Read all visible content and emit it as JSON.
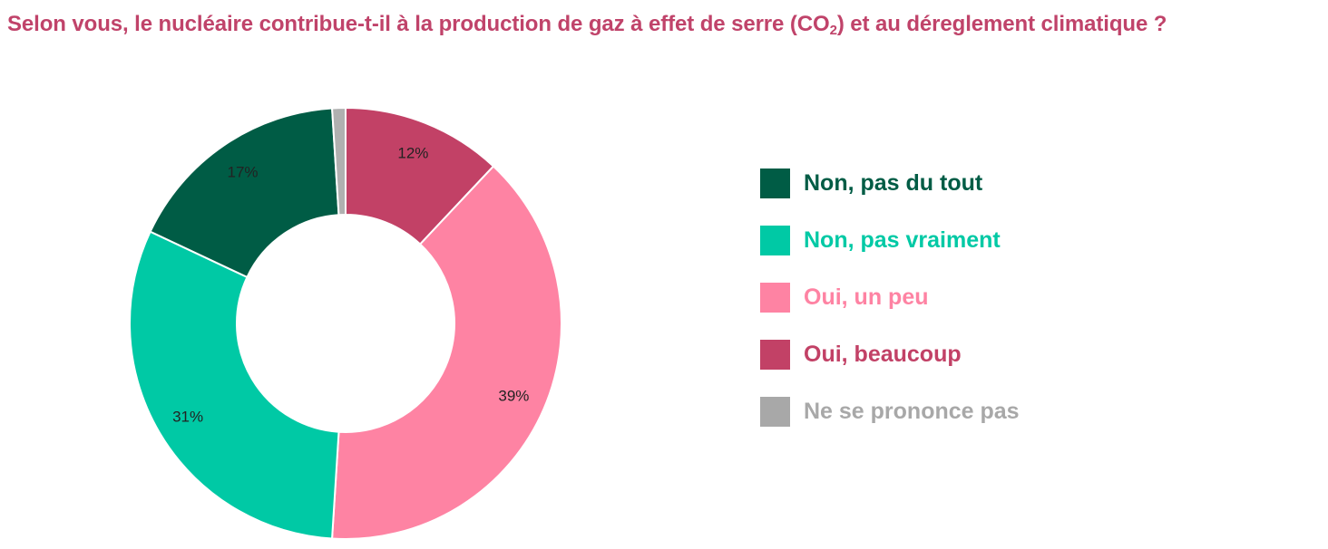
{
  "chart_data": {
    "type": "pie",
    "variant": "donut",
    "title": {
      "before_sub": "Selon vous, le nucléaire contribue-t-il à la production de gaz à effet de serre (CO",
      "sub": "2",
      "after_sub": ") et au déreglement climatique ?"
    },
    "legend_position": "right",
    "slices": [
      {
        "name": "Oui, beaucoup",
        "value": 12,
        "label": "12%",
        "color": "#c24166"
      },
      {
        "name": "Oui, un peu",
        "value": 39,
        "label": "39%",
        "color": "#fe83a3"
      },
      {
        "name": "Non, pas vraiment",
        "value": 31,
        "label": "31%",
        "color": "#00c9a5"
      },
      {
        "name": "Non, pas du tout",
        "value": 17,
        "label": "17%",
        "color": "#005c45"
      },
      {
        "name": "Ne se prononce pas",
        "value": 1,
        "label": "",
        "color": "#b0b0b0"
      }
    ],
    "legend": [
      {
        "label": "Non, pas du tout",
        "color": "#005c45"
      },
      {
        "label": "Non, pas vraiment",
        "color": "#00c9a5"
      },
      {
        "label": "Oui, un peu",
        "color": "#fe83a3"
      },
      {
        "label": "Oui, beaucoup",
        "color": "#c24166"
      },
      {
        "label": "Ne se prononce pas",
        "color": "#a8a8a8"
      }
    ]
  }
}
